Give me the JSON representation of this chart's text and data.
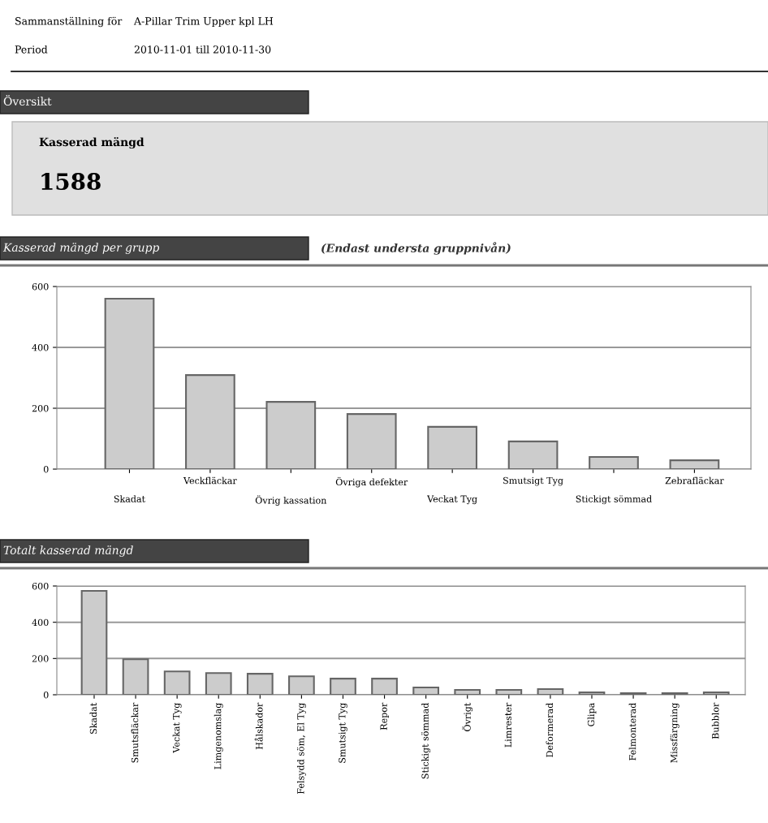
{
  "chart_data": [
    {
      "type": "other",
      "annotations": [
        "Sammanställning för",
        "A-Pillar Trim Upper kpl LH",
        "Period",
        "2010-11-01 till 2010-11-30",
        "Översikt",
        "Kasserad mängd",
        "1588"
      ]
    },
    {
      "type": "bar",
      "title": "Kasserad mängd per grupp",
      "subtitle": "(Endast understa gruppnivån)",
      "categories": [
        "Skadat",
        "Veckfläckar",
        "Övrig kassation",
        "Övriga defekter",
        "Veckat Tyg",
        "Smutsigt Tyg",
        "Stickigt sömmad",
        "Zebrafläckar"
      ],
      "values": [
        560,
        309,
        221,
        181,
        139,
        91,
        40,
        29
      ],
      "color": "#cccccc",
      "ylim": [
        0,
        600
      ],
      "yticks": [
        0,
        200,
        400,
        600
      ],
      "grid": "y"
    },
    {
      "type": "bar",
      "title": "Totalt kasserad mängd",
      "categories": [
        "Skadat",
        "Smutsfläckar",
        "Veckat Tyg",
        "Limgenomslag",
        "Hålskador",
        "Felsydd söm, El Tyg",
        "Smutsigt Tyg",
        "Repor",
        "Stickigt sömmad",
        "Övrigt",
        "Limrester",
        "Deformerad",
        "Glipa",
        "Felmonterad",
        "Missfärgning",
        "Bubblor"
      ],
      "values": [
        573,
        196,
        129,
        120,
        116,
        102,
        89,
        89,
        40,
        27,
        27,
        31,
        13,
        9,
        9,
        13
      ],
      "color": "#cccccc",
      "ylim": [
        0,
        600
      ],
      "yticks": [
        0,
        200,
        400,
        600
      ],
      "grid": "y"
    }
  ]
}
